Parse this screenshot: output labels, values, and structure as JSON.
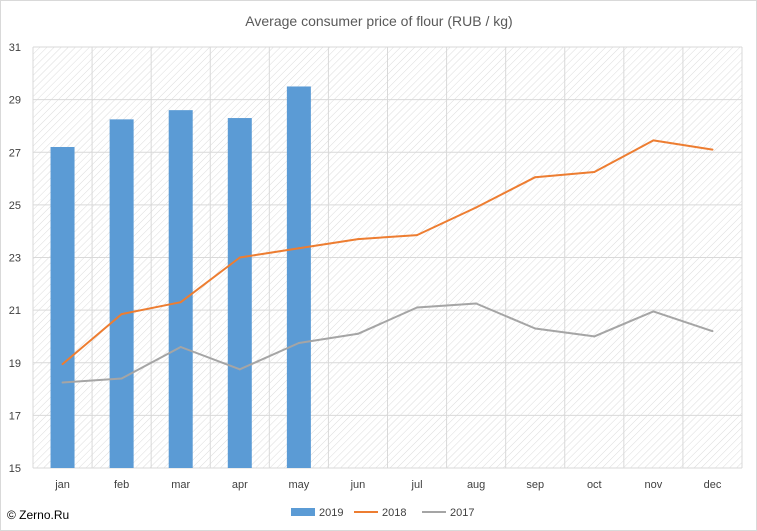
{
  "chart_data": {
    "type": "bar",
    "title": "Average consumer price of flour (RUB / kg)",
    "categories": [
      "jan",
      "feb",
      "mar",
      "apr",
      "may",
      "jun",
      "jul",
      "aug",
      "sep",
      "oct",
      "nov",
      "dec"
    ],
    "ylim": [
      15,
      31
    ],
    "yticks": [
      15,
      17,
      19,
      21,
      23,
      25,
      27,
      29,
      31
    ],
    "grid": true,
    "legend_position": "bottom",
    "series": [
      {
        "name": "2019",
        "kind": "bar",
        "color": "#5b9bd5",
        "values": [
          27.2,
          28.25,
          28.6,
          28.3,
          29.5,
          null,
          null,
          null,
          null,
          null,
          null,
          null
        ]
      },
      {
        "name": "2018",
        "kind": "line",
        "color": "#ed7d31",
        "values": [
          18.95,
          20.85,
          21.3,
          23.0,
          23.35,
          23.7,
          23.85,
          24.9,
          26.05,
          26.25,
          27.45,
          27.1
        ]
      },
      {
        "name": "2017",
        "kind": "line",
        "color": "#a5a5a5",
        "values": [
          18.25,
          18.4,
          19.6,
          18.75,
          19.75,
          20.1,
          21.1,
          21.25,
          20.3,
          20.0,
          20.95,
          20.2
        ]
      }
    ]
  },
  "watermark": "© Zerno.Ru"
}
